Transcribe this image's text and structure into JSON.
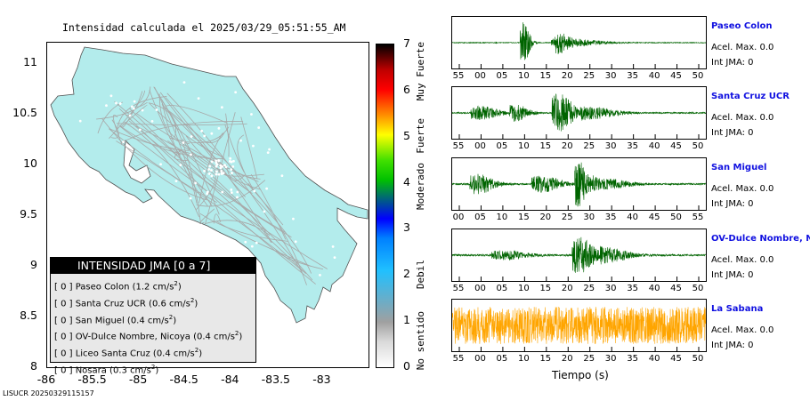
{
  "map_title": "Intensidad calculada el 2025/03/29_05:51:55_AM",
  "footer_id": "LISUCR 20250329115157",
  "colors": {
    "land": "#b3ecec",
    "roads": "#a8a8a8",
    "trace_green": "#006400",
    "trace_orange": "#ffa500",
    "station_link": "#1010e0"
  },
  "chart_data": [
    {
      "type": "heatmap",
      "title": "Intensidad calculada el 2025/03/29_05:51:55_AM",
      "xlabel": "",
      "ylabel": "",
      "xlim": [
        -86,
        -82.5
      ],
      "ylim": [
        8,
        11.2
      ],
      "x_ticks": [
        "-86",
        "-85.5",
        "-85",
        "-84.5",
        "-84",
        "-83.5",
        "-83"
      ],
      "y_ticks": [
        "11",
        "10.5",
        "10",
        "9.5",
        "9",
        "8.5",
        "8"
      ],
      "colorbar": {
        "range": [
          0,
          7
        ],
        "ticks": [
          "0",
          "1",
          "2",
          "3",
          "4",
          "5",
          "6",
          "7"
        ],
        "labels": [
          "No sentido",
          "Debil",
          "Moderado",
          "Fuerte",
          "Muy Fuerte"
        ]
      },
      "legend": {
        "title": "INTENSIDAD JMA [0 a 7]",
        "entries": [
          {
            "jma": "[ 0 ]",
            "station": "Paseo Colon",
            "accel_value": "1.2",
            "unit": "cm/s",
            "exp": "2"
          },
          {
            "jma": "[ 0 ]",
            "station": "Santa Cruz UCR",
            "accel_value": "0.6",
            "unit": "cm/s",
            "exp": "2"
          },
          {
            "jma": "[ 0 ]",
            "station": "San Miguel",
            "accel_value": "0.4",
            "unit": "cm/s",
            "exp": "2"
          },
          {
            "jma": "[ 0 ]",
            "station": "OV-Dulce Nombre, Nicoya",
            "accel_value": "0.4",
            "unit": "cm/s",
            "exp": "2"
          },
          {
            "jma": "[ 0 ]",
            "station": "Liceo Santa Cruz",
            "accel_value": "0.4",
            "unit": "cm/s",
            "exp": "2"
          },
          {
            "jma": "[ 0 ]",
            "station": "Nosara",
            "accel_value": "0.3",
            "unit": "cm/s",
            "exp": "2"
          }
        ]
      }
    },
    {
      "type": "line",
      "xlabel": "Tiempo (s)",
      "series": [
        {
          "name": "Paseo Colon",
          "accel": "Acel. Max. 0.0",
          "jma": "Int JMA: 0",
          "color": "#006400",
          "ticks": [
            "55",
            "00",
            "05",
            "10",
            "15",
            "20",
            "25",
            "30",
            "35",
            "40",
            "45",
            "50"
          ],
          "bursts": [
            [
              0.28,
              2.6,
              0.04
            ],
            [
              0.42,
              0.9,
              0.05
            ],
            [
              0.45,
              0.5,
              0.2
            ]
          ],
          "noise": 0.05,
          "seed": 3
        },
        {
          "name": "Santa Cruz UCR",
          "accel": "Acel. Max. 0.0",
          "jma": "Int JMA: 0",
          "color": "#006400",
          "ticks": [
            "55",
            "00",
            "05",
            "10",
            "15",
            "20",
            "25",
            "30",
            "35",
            "40",
            "45",
            "50"
          ],
          "bursts": [
            [
              0.11,
              0.8,
              0.12
            ],
            [
              0.25,
              1.0,
              0.08
            ],
            [
              0.42,
              2.4,
              0.09
            ],
            [
              0.55,
              0.7,
              0.15
            ]
          ],
          "noise": 0.08,
          "seed": 7
        },
        {
          "name": "San Miguel",
          "accel": "Acel. Max. 0.0",
          "jma": "Int JMA: 0",
          "color": "#006400",
          "ticks": [
            "00",
            "05",
            "10",
            "15",
            "20",
            "25",
            "30",
            "35",
            "40",
            "45",
            "50",
            "55"
          ],
          "bursts": [
            [
              0.1,
              1.2,
              0.1
            ],
            [
              0.35,
              1.0,
              0.12
            ],
            [
              0.5,
              2.8,
              0.06
            ],
            [
              0.6,
              0.6,
              0.15
            ]
          ],
          "noise": 0.1,
          "seed": 11
        },
        {
          "name": "OV-Dulce Nombre, Nicoya",
          "accel": "Acel. Max. 0.0",
          "jma": "Int JMA: 0",
          "color": "#006400",
          "ticks": [
            "55",
            "00",
            "05",
            "10",
            "15",
            "20",
            "25",
            "30",
            "35",
            "40",
            "45",
            "50"
          ],
          "bursts": [
            [
              0.2,
              0.5,
              0.15
            ],
            [
              0.5,
              2.3,
              0.09
            ],
            [
              0.62,
              0.8,
              0.12
            ]
          ],
          "noise": 0.12,
          "seed": 19
        },
        {
          "name": "La Sabana",
          "accel": "Acel. Max. 0.0",
          "jma": "Int JMA: 0",
          "color": "#ffa500",
          "ticks": [
            "55",
            "00",
            "05",
            "10",
            "15",
            "20",
            "25",
            "30",
            "35",
            "40",
            "45",
            "50"
          ],
          "bursts": [],
          "noise": 1.0,
          "seed": 23
        }
      ]
    }
  ]
}
